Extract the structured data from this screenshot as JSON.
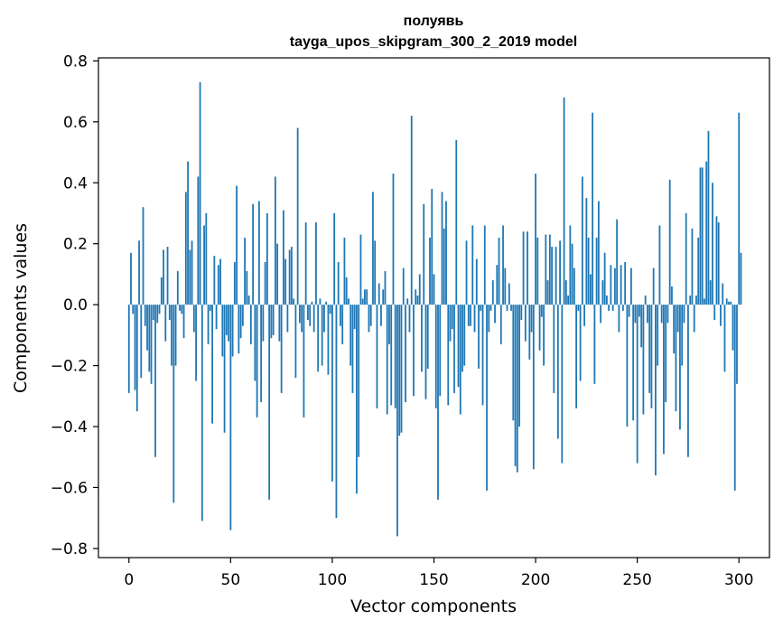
{
  "chart_data": {
    "type": "bar",
    "title": "полуявь",
    "subtitle": "tayga_upos_skipgram_300_2_2019 model",
    "xlabel": "Vector components",
    "ylabel": "Components values",
    "xlim": [
      -15,
      315
    ],
    "ylim": [
      -0.83,
      0.81
    ],
    "xticks": [
      0,
      50,
      100,
      150,
      200,
      250,
      300
    ],
    "xtick_labels": [
      "0",
      "50",
      "100",
      "150",
      "200",
      "250",
      "300"
    ],
    "yticks": [
      -0.8,
      -0.6,
      -0.4,
      -0.2,
      0.0,
      0.2,
      0.4,
      0.6,
      0.8
    ],
    "ytick_labels": [
      "−0.8",
      "−0.6",
      "−0.4",
      "−0.2",
      "0.0",
      "0.2",
      "0.4",
      "0.6",
      "0.8"
    ],
    "bar_color": "#1f77b4",
    "grid": false,
    "legend": "none",
    "series": [
      {
        "values": [
          -0.29,
          0.17,
          -0.03,
          -0.28,
          -0.35,
          0.21,
          -0.24,
          0.32,
          -0.07,
          -0.15,
          -0.22,
          -0.26,
          -0.05,
          -0.5,
          -0.06,
          -0.03,
          0.09,
          0.18,
          -0.12,
          0.19,
          -0.05,
          -0.2,
          -0.65,
          -0.2,
          0.11,
          -0.02,
          -0.03,
          -0.11,
          0.37,
          0.47,
          0.18,
          0.21,
          -0.09,
          -0.25,
          0.42,
          0.73,
          -0.71,
          0.26,
          0.3,
          -0.13,
          -0.02,
          -0.39,
          0.16,
          -0.08,
          0.13,
          0.15,
          -0.17,
          -0.42,
          -0.1,
          -0.12,
          -0.74,
          -0.17,
          0.14,
          0.39,
          -0.16,
          -0.11,
          -0.07,
          0.22,
          0.11,
          0.03,
          -0.13,
          0.33,
          -0.25,
          -0.37,
          0.34,
          -0.32,
          -0.12,
          0.14,
          0.3,
          -0.64,
          -0.11,
          -0.1,
          0.42,
          0.2,
          -0.12,
          -0.29,
          0.31,
          0.15,
          -0.09,
          0.18,
          0.19,
          0.02,
          -0.24,
          0.58,
          -0.06,
          -0.09,
          -0.37,
          0.27,
          -0.05,
          -0.07,
          0.01,
          -0.09,
          0.27,
          -0.22,
          0.02,
          -0.2,
          -0.09,
          0.01,
          -0.23,
          -0.03,
          -0.58,
          0.3,
          -0.7,
          0.14,
          -0.07,
          -0.13,
          0.22,
          0.09,
          0.02,
          -0.2,
          -0.29,
          -0.08,
          -0.62,
          -0.5,
          0.23,
          0.02,
          0.05,
          0.05,
          -0.09,
          -0.07,
          0.37,
          0.21,
          -0.34,
          0.07,
          -0.07,
          0.05,
          0.11,
          -0.36,
          -0.13,
          -0.33,
          0.43,
          -0.34,
          -0.76,
          -0.43,
          -0.42,
          0.12,
          -0.32,
          0.02,
          -0.09,
          0.62,
          -0.3,
          0.05,
          0.03,
          0.1,
          -0.22,
          0.33,
          -0.31,
          -0.21,
          0.22,
          0.38,
          0.1,
          -0.34,
          -0.64,
          -0.3,
          0.37,
          0.25,
          0.34,
          -0.33,
          -0.12,
          -0.08,
          -0.29,
          0.54,
          -0.27,
          -0.36,
          -0.22,
          -0.2,
          0.21,
          -0.07,
          -0.07,
          0.26,
          -0.09,
          0.15,
          -0.21,
          -0.02,
          -0.33,
          0.26,
          -0.61,
          -0.09,
          -0.02,
          0.08,
          -0.06,
          0.13,
          0.22,
          -0.13,
          0.26,
          0.12,
          -0.02,
          0.07,
          -0.02,
          -0.38,
          -0.53,
          -0.55,
          -0.4,
          -0.05,
          0.24,
          -0.12,
          0.24,
          -0.18,
          -0.09,
          -0.54,
          0.43,
          0.22,
          -0.15,
          -0.04,
          -0.2,
          0.23,
          0.08,
          0.23,
          0.19,
          -0.29,
          0.19,
          -0.44,
          0.21,
          -0.52,
          0.68,
          0.08,
          0.03,
          0.26,
          0.2,
          0.12,
          -0.34,
          -0.02,
          -0.25,
          0.42,
          -0.07,
          0.35,
          0.22,
          0.1,
          0.63,
          -0.26,
          0.22,
          0.34,
          -0.06,
          0.08,
          0.17,
          0.03,
          -0.02,
          0.13,
          -0.02,
          0.12,
          0.28,
          -0.09,
          0.13,
          -0.02,
          0.14,
          -0.4,
          -0.04,
          0.12,
          -0.38,
          -0.06,
          -0.52,
          -0.04,
          -0.14,
          -0.36,
          0.03,
          -0.06,
          -0.29,
          -0.34,
          0.12,
          -0.56,
          -0.2,
          0.26,
          -0.06,
          -0.49,
          -0.32,
          -0.06,
          0.41,
          0.06,
          -0.16,
          -0.35,
          -0.09,
          -0.41,
          -0.2,
          -0.06,
          0.3,
          -0.5,
          0.03,
          0.25,
          -0.09,
          0.03,
          0.22,
          0.45,
          0.45,
          0.02,
          0.47,
          0.57,
          0.08,
          0.4,
          -0.05,
          0.29,
          0.27,
          -0.07,
          0.07,
          -0.22,
          0.02,
          0.01,
          0.01,
          -0.15,
          -0.61,
          -0.26,
          0.63,
          0.17
        ]
      }
    ]
  }
}
